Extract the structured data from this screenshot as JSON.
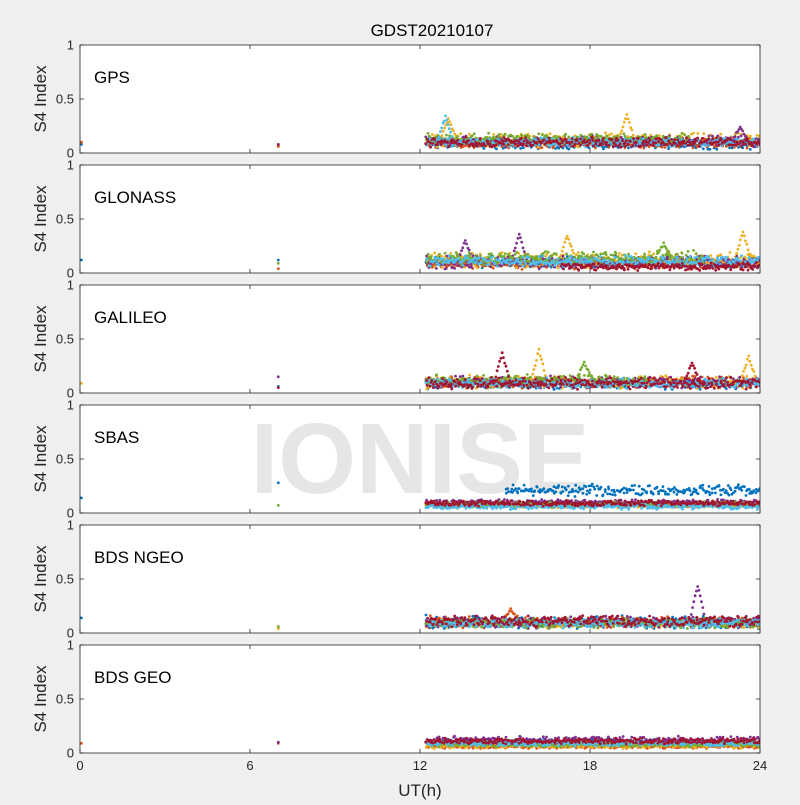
{
  "figure": {
    "title": "GDST20210107",
    "xlabel": "UT(h)",
    "watermark": "IONISE"
  },
  "colors": {
    "background": "#f0f0f0",
    "axes_bg": "#ffffff",
    "axis_line": "#262626",
    "watermark": "#e6e6e6",
    "palette": [
      "#0072BD",
      "#D95319",
      "#EDB120",
      "#7E2F8E",
      "#77AC30",
      "#4DBEEE",
      "#A2142F"
    ]
  },
  "chart_data": [
    {
      "type": "scatter",
      "title": "GPS",
      "ylabel": "S4 Index",
      "xlim": [
        0,
        24
      ],
      "ylim": [
        0,
        1
      ],
      "xticks": [
        0,
        6,
        12,
        18,
        24
      ],
      "xtick_labels": [
        "",
        "",
        "",
        "",
        ""
      ],
      "yticks": [
        0,
        0.5,
        1
      ],
      "ytick_labels": [
        "0",
        "0.5",
        "1"
      ],
      "grid": false,
      "series": [
        {
          "color": "#0072BD",
          "points": [
            [
              0.05,
              0.08
            ],
            [
              7,
              0.07
            ]
          ],
          "band": {
            "x": [
              12.2,
              24
            ],
            "base": 0.08,
            "spread": 0.05
          }
        },
        {
          "color": "#D95319",
          "points": [
            [
              0.05,
              0.1
            ],
            [
              7,
              0.06
            ]
          ],
          "band": {
            "x": [
              12.2,
              24
            ],
            "base": 0.09,
            "spread": 0.05
          }
        },
        {
          "color": "#EDB120",
          "band": {
            "x": [
              12.2,
              24
            ],
            "base": 0.12,
            "spread": 0.07
          },
          "peaks": [
            [
              13,
              0.32
            ],
            [
              19.3,
              0.35
            ]
          ]
        },
        {
          "color": "#7E2F8E",
          "band": {
            "x": [
              12.2,
              24
            ],
            "base": 0.11,
            "spread": 0.06
          },
          "peaks": [
            [
              23.3,
              0.24
            ]
          ]
        },
        {
          "color": "#77AC30",
          "band": {
            "x": [
              12.2,
              21.5
            ],
            "base": 0.13,
            "spread": 0.06
          }
        },
        {
          "color": "#4DBEEE",
          "band": {
            "x": [
              12.2,
              24
            ],
            "base": 0.1,
            "spread": 0.05
          },
          "peaks": [
            [
              12.9,
              0.34
            ]
          ]
        },
        {
          "color": "#A2142F",
          "points": [
            [
              7,
              0.08
            ]
          ],
          "band": {
            "x": [
              12.2,
              24
            ],
            "base": 0.1,
            "spread": 0.05
          }
        }
      ]
    },
    {
      "type": "scatter",
      "title": "GLONASS",
      "ylabel": "S4 Index",
      "xlim": [
        0,
        24
      ],
      "ylim": [
        0,
        1
      ],
      "xticks": [
        0,
        6,
        12,
        18,
        24
      ],
      "xtick_labels": [
        "",
        "",
        "",
        "",
        ""
      ],
      "yticks": [
        0,
        0.5,
        1
      ],
      "ytick_labels": [
        "0",
        "0.5",
        "1"
      ],
      "grid": false,
      "series": [
        {
          "color": "#0072BD",
          "points": [
            [
              0.05,
              0.12
            ],
            [
              7,
              0.12
            ]
          ],
          "band": {
            "x": [
              12.2,
              24
            ],
            "base": 0.1,
            "spread": 0.06
          }
        },
        {
          "color": "#D95319",
          "points": [
            [
              7,
              0.04
            ]
          ],
          "band": {
            "x": [
              12.2,
              24
            ],
            "base": 0.08,
            "spread": 0.05
          }
        },
        {
          "color": "#EDB120",
          "band": {
            "x": [
              12.2,
              24
            ],
            "base": 0.12,
            "spread": 0.08
          },
          "peaks": [
            [
              17.2,
              0.35
            ],
            [
              23.4,
              0.38
            ]
          ]
        },
        {
          "color": "#7E2F8E",
          "band": {
            "x": [
              12.2,
              24
            ],
            "base": 0.1,
            "spread": 0.07
          },
          "peaks": [
            [
              13.6,
              0.3
            ],
            [
              15.5,
              0.36
            ]
          ]
        },
        {
          "color": "#77AC30",
          "points": [
            [
              7,
              0.09
            ]
          ],
          "band": {
            "x": [
              12.2,
              22
            ],
            "base": 0.14,
            "spread": 0.07
          },
          "peaks": [
            [
              20.6,
              0.27
            ]
          ]
        },
        {
          "color": "#4DBEEE",
          "band": {
            "x": [
              12.2,
              24
            ],
            "base": 0.11,
            "spread": 0.06
          }
        },
        {
          "color": "#A2142F",
          "band": {
            "x": [
              17,
              24
            ],
            "base": 0.06,
            "spread": 0.04
          }
        }
      ]
    },
    {
      "type": "scatter",
      "title": "GALILEO",
      "ylabel": "S4 Index",
      "xlim": [
        0,
        24
      ],
      "ylim": [
        0,
        1
      ],
      "xticks": [
        0,
        6,
        12,
        18,
        24
      ],
      "xtick_labels": [
        "",
        "",
        "",
        "",
        ""
      ],
      "yticks": [
        0,
        0.5,
        1
      ],
      "ytick_labels": [
        "0",
        "0.5",
        "1"
      ],
      "grid": false,
      "series": [
        {
          "color": "#0072BD",
          "points": [
            [
              7,
              0.06
            ]
          ],
          "band": {
            "x": [
              12.2,
              24
            ],
            "base": 0.08,
            "spread": 0.05
          }
        },
        {
          "color": "#D95319",
          "band": {
            "x": [
              12.2,
              24
            ],
            "base": 0.1,
            "spread": 0.06
          }
        },
        {
          "color": "#EDB120",
          "points": [
            [
              0.05,
              0.09
            ]
          ],
          "band": {
            "x": [
              12.2,
              24
            ],
            "base": 0.1,
            "spread": 0.07
          },
          "peaks": [
            [
              16.2,
              0.4
            ],
            [
              23.6,
              0.34
            ]
          ]
        },
        {
          "color": "#7E2F8E",
          "points": [
            [
              7,
              0.15
            ]
          ],
          "band": {
            "x": [
              12.2,
              24
            ],
            "base": 0.1,
            "spread": 0.06
          }
        },
        {
          "color": "#77AC30",
          "band": {
            "x": [
              12.2,
              20
            ],
            "base": 0.12,
            "spread": 0.06
          },
          "peaks": [
            [
              17.8,
              0.28
            ]
          ]
        },
        {
          "color": "#4DBEEE",
          "band": {
            "x": [
              12.2,
              24
            ],
            "base": 0.09,
            "spread": 0.05
          }
        },
        {
          "color": "#A2142F",
          "points": [
            [
              7,
              0.05
            ]
          ],
          "band": {
            "x": [
              12.2,
              24
            ],
            "base": 0.09,
            "spread": 0.06
          },
          "peaks": [
            [
              14.9,
              0.37
            ],
            [
              21.6,
              0.28
            ]
          ]
        }
      ]
    },
    {
      "type": "scatter",
      "title": "SBAS",
      "ylabel": "S4 Index",
      "xlim": [
        0,
        24
      ],
      "ylim": [
        0,
        1
      ],
      "xticks": [
        0,
        6,
        12,
        18,
        24
      ],
      "xtick_labels": [
        "",
        "",
        "",
        "",
        ""
      ],
      "yticks": [
        0,
        0.5,
        1
      ],
      "ytick_labels": [
        "0",
        "0.5",
        "1"
      ],
      "grid": false,
      "series": [
        {
          "color": "#0072BD",
          "points": [
            [
              7,
              0.28
            ],
            [
              0.05,
              0.14
            ]
          ],
          "band": {
            "x": [
              15,
              24
            ],
            "base": 0.21,
            "spread": 0.06
          }
        },
        {
          "color": "#D95319",
          "band": {
            "x": [
              12.2,
              24
            ],
            "base": 0.08,
            "spread": 0.03
          }
        },
        {
          "color": "#EDB120",
          "band": {
            "x": [
              12.2,
              24
            ],
            "base": 0.07,
            "spread": 0.03
          }
        },
        {
          "color": "#7E2F8E",
          "band": {
            "x": [
              12.2,
              24
            ],
            "base": 0.1,
            "spread": 0.03
          }
        },
        {
          "color": "#77AC30",
          "points": [
            [
              7,
              0.07
            ]
          ],
          "band": {
            "x": [
              12.2,
              24
            ],
            "base": 0.08,
            "spread": 0.03
          }
        },
        {
          "color": "#4DBEEE",
          "band": {
            "x": [
              12.2,
              24
            ],
            "base": 0.06,
            "spread": 0.03
          }
        },
        {
          "color": "#A2142F",
          "band": {
            "x": [
              12.2,
              24
            ],
            "base": 0.09,
            "spread": 0.03
          }
        }
      ]
    },
    {
      "type": "scatter",
      "title": "BDS NGEO",
      "ylabel": "S4 Index",
      "xlim": [
        0,
        24
      ],
      "ylim": [
        0,
        1
      ],
      "xticks": [
        0,
        6,
        12,
        18,
        24
      ],
      "xtick_labels": [
        "",
        "",
        "",
        "",
        ""
      ],
      "yticks": [
        0,
        0.5,
        1
      ],
      "ytick_labels": [
        "0",
        "0.5",
        "1"
      ],
      "grid": false,
      "series": [
        {
          "color": "#0072BD",
          "points": [
            [
              0.05,
              0.14
            ]
          ],
          "band": {
            "x": [
              12.2,
              24
            ],
            "base": 0.1,
            "spread": 0.07
          }
        },
        {
          "color": "#D95319",
          "points": [
            [
              7,
              0.05
            ]
          ],
          "band": {
            "x": [
              12.2,
              24
            ],
            "base": 0.1,
            "spread": 0.06
          },
          "peaks": [
            [
              15.2,
              0.22
            ]
          ]
        },
        {
          "color": "#EDB120",
          "points": [
            [
              7,
              0.04
            ]
          ],
          "band": {
            "x": [
              12.2,
              24
            ],
            "base": 0.09,
            "spread": 0.05
          }
        },
        {
          "color": "#7E2F8E",
          "band": {
            "x": [
              12.2,
              24
            ],
            "base": 0.1,
            "spread": 0.06
          },
          "peaks": [
            [
              21.8,
              0.44
            ]
          ]
        },
        {
          "color": "#77AC30",
          "points": [
            [
              7,
              0.06
            ]
          ],
          "band": {
            "x": [
              12.2,
              24
            ],
            "base": 0.09,
            "spread": 0.05
          }
        },
        {
          "color": "#4DBEEE",
          "band": {
            "x": [
              12.2,
              24
            ],
            "base": 0.09,
            "spread": 0.05
          }
        },
        {
          "color": "#A2142F",
          "band": {
            "x": [
              12.2,
              24
            ],
            "base": 0.11,
            "spread": 0.06
          }
        }
      ]
    },
    {
      "type": "scatter",
      "title": "BDS GEO",
      "ylabel": "S4 Index",
      "xlim": [
        0,
        24
      ],
      "ylim": [
        0,
        1
      ],
      "xticks": [
        0,
        6,
        12,
        18,
        24
      ],
      "xtick_labels": [
        "0",
        "6",
        "12",
        "18",
        "24"
      ],
      "yticks": [
        0,
        0.5,
        1
      ],
      "ytick_labels": [
        "0",
        "0.5",
        "1"
      ],
      "grid": false,
      "series": [
        {
          "color": "#0072BD",
          "band": {
            "x": [
              12.2,
              24
            ],
            "base": 0.1,
            "spread": 0.03
          }
        },
        {
          "color": "#D95319",
          "points": [
            [
              0.05,
              0.09
            ],
            [
              7,
              0.09
            ]
          ],
          "band": {
            "x": [
              12.2,
              24
            ],
            "base": 0.06,
            "spread": 0.02
          }
        },
        {
          "color": "#EDB120",
          "band": {
            "x": [
              12.2,
              24
            ],
            "base": 0.07,
            "spread": 0.03
          }
        },
        {
          "color": "#7E2F8E",
          "points": [
            [
              7,
              0.1
            ]
          ],
          "band": {
            "x": [
              12.2,
              24
            ],
            "base": 0.12,
            "spread": 0.04
          }
        },
        {
          "color": "#77AC30",
          "band": {
            "x": [
              12.2,
              24
            ],
            "base": 0.08,
            "spread": 0.03
          }
        },
        {
          "color": "#4DBEEE",
          "band": {
            "x": [
              12.2,
              24
            ],
            "base": 0.09,
            "spread": 0.03
          }
        },
        {
          "color": "#A2142F",
          "band": {
            "x": [
              12.2,
              24
            ],
            "base": 0.11,
            "spread": 0.03
          }
        }
      ]
    }
  ]
}
